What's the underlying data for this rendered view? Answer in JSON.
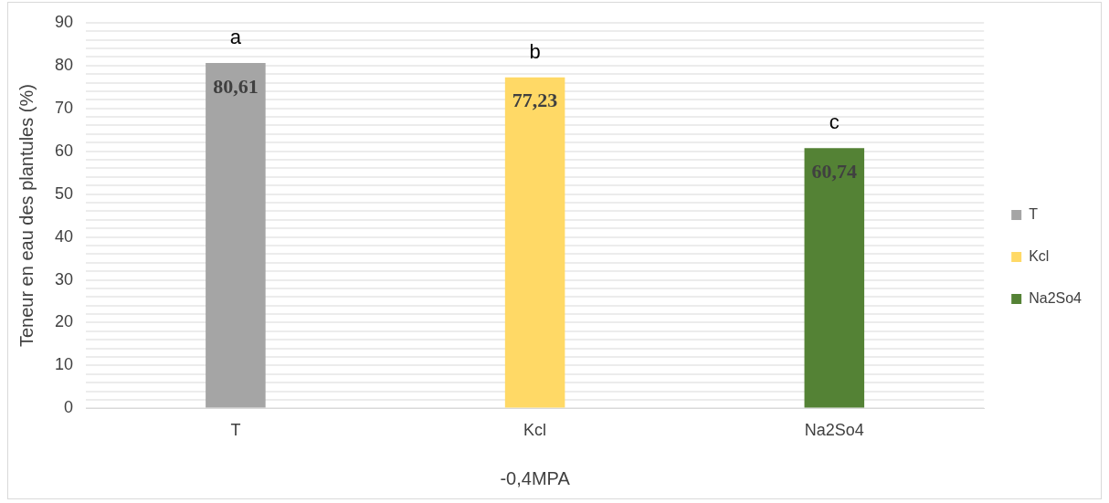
{
  "chart_data": {
    "type": "bar",
    "ylabel": "Teneur en eau des plantules (%)",
    "xlabel": "-0,4MPA",
    "categories": [
      "T",
      "Kcl",
      "Na2So4"
    ],
    "series": [
      {
        "name": "T",
        "color": "#a5a5a5",
        "values": [
          80.61,
          null,
          null
        ],
        "value_labels": [
          "80,61",
          null,
          null
        ]
      },
      {
        "name": "Kcl",
        "color": "#ffd966",
        "values": [
          null,
          77.23,
          null
        ],
        "value_labels": [
          null,
          "77,23",
          null
        ]
      },
      {
        "name": "Na2So4",
        "color": "#548235",
        "values": [
          null,
          null,
          60.74
        ],
        "value_labels": [
          null,
          null,
          "60,74"
        ]
      }
    ],
    "ylim": [
      0,
      90
    ],
    "yticks": [
      0,
      {
        "value": 2,
        "label": null
      },
      {
        "value": 4,
        "label": null
      },
      {
        "value": 6,
        "label": null
      },
      {
        "value": 8,
        "label": null
      },
      10,
      {
        "value": 12,
        "label": null
      },
      {
        "value": 14,
        "label": null
      },
      {
        "value": 16,
        "label": null
      },
      {
        "value": 18,
        "label": null
      },
      20,
      {
        "value": 22,
        "label": null
      },
      {
        "value": 24,
        "label": null
      },
      {
        "value": 26,
        "label": null
      },
      {
        "value": 28,
        "label": null
      },
      30,
      {
        "value": 32,
        "label": null
      },
      {
        "value": 34,
        "label": null
      },
      {
        "value": 36,
        "label": null
      },
      {
        "value": 38,
        "label": null
      },
      40,
      {
        "value": 42,
        "label": null
      },
      {
        "value": 44,
        "label": null
      },
      {
        "value": 46,
        "label": null
      },
      {
        "value": 48,
        "label": null
      },
      50,
      {
        "value": 52,
        "label": null
      },
      {
        "value": 54,
        "label": null
      },
      {
        "value": 56,
        "label": null
      },
      {
        "value": 58,
        "label": null
      },
      60,
      {
        "value": 62,
        "label": null
      },
      {
        "value": 64,
        "label": null
      },
      {
        "value": 66,
        "label": null
      },
      {
        "value": 68,
        "label": null
      },
      70,
      {
        "value": 72,
        "label": null
      },
      {
        "value": 74,
        "label": null
      },
      {
        "value": 76,
        "label": null
      },
      {
        "value": 78,
        "label": null
      },
      80,
      {
        "value": 82,
        "label": null
      },
      {
        "value": 84,
        "label": null
      },
      {
        "value": 86,
        "label": null
      },
      {
        "value": 88,
        "label": null
      },
      90
    ],
    "annotations": [
      {
        "text": "a",
        "x": "T",
        "y": 80.61
      },
      {
        "text": "b",
        "x": "Kcl",
        "y": 77.23
      },
      {
        "text": "c",
        "x": "Na2So4",
        "y": 60.74
      }
    ],
    "grid": "y",
    "legend": "right"
  }
}
